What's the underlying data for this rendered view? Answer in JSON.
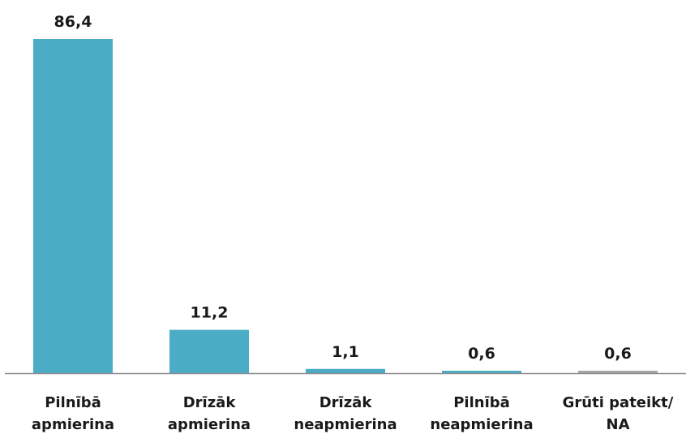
{
  "chart_data": {
    "type": "bar",
    "categories": [
      [
        "Pilnībā",
        "apmierina"
      ],
      [
        "Drīzāk",
        "apmierina"
      ],
      [
        "Drīzāk",
        "neapmierina"
      ],
      [
        "Pilnībā",
        "neapmierina"
      ],
      [
        "Grūti pateikt/",
        "NA"
      ]
    ],
    "values": [
      86.4,
      11.2,
      1.1,
      0.6,
      0.6
    ],
    "value_labels": [
      "86,4",
      "11,2",
      "1,1",
      "0,6",
      "0,6"
    ],
    "bar_colors": [
      "#4bacc6",
      "#4bacc6",
      "#4bacc6",
      "#4bacc6",
      "#a6a6a6"
    ],
    "ylim": [
      0,
      86.4
    ],
    "grid": false,
    "title": "",
    "xlabel": "",
    "ylabel": ""
  }
}
